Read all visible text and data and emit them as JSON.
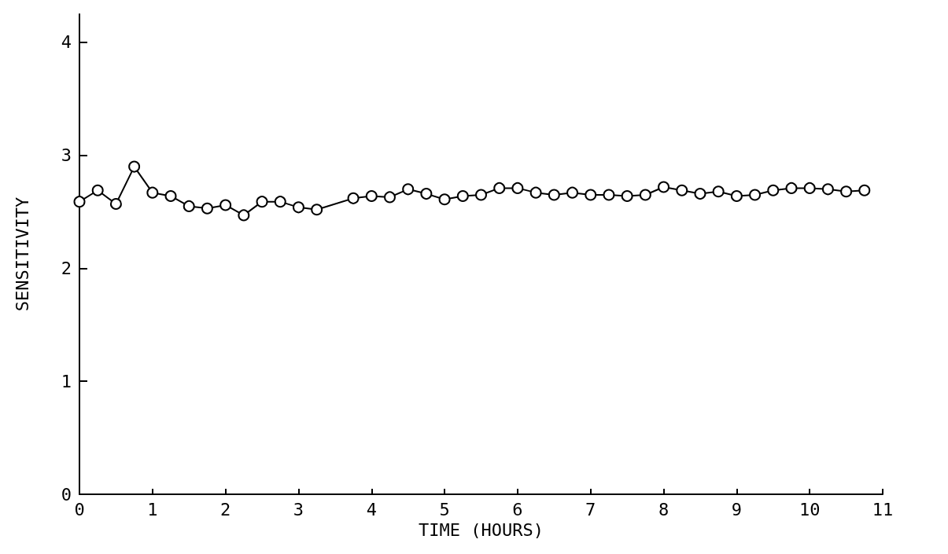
{
  "chart_data": {
    "type": "line",
    "xlabel": "TIME (HOURS)",
    "ylabel": "SENSITIVITY",
    "xlim": [
      0,
      11
    ],
    "xticks": [
      0,
      1,
      2,
      3,
      4,
      5,
      6,
      7,
      8,
      9,
      10,
      11
    ],
    "ylim": [
      0,
      4.25
    ],
    "yticks": [
      0,
      1,
      2,
      3,
      4
    ],
    "grid": false,
    "marker": "circle",
    "line_style": "solid",
    "series": [
      {
        "color": "#000000",
        "x": [
          0,
          0.25,
          0.5,
          0.75,
          1,
          1.25,
          1.5,
          1.75,
          2,
          2.25,
          2.5,
          2.75,
          3,
          3.25,
          3.75,
          4,
          4.25,
          4.5,
          4.75,
          5,
          5.25,
          5.5,
          5.75,
          6,
          6.25,
          6.5,
          6.75,
          7,
          7.25,
          7.5,
          7.75,
          8,
          8.25,
          8.5,
          8.75,
          9,
          9.25,
          9.5,
          9.75,
          10,
          10.25,
          10.5,
          10.75
        ],
        "values": [
          2.59,
          2.69,
          2.57,
          2.9,
          2.67,
          2.64,
          2.55,
          2.53,
          2.56,
          2.47,
          2.59,
          2.59,
          2.54,
          2.52,
          2.62,
          2.64,
          2.63,
          2.7,
          2.66,
          2.61,
          2.64,
          2.65,
          2.71,
          2.71,
          2.67,
          2.65,
          2.67,
          2.65,
          2.65,
          2.64,
          2.65,
          2.72,
          2.69,
          2.66,
          2.68,
          2.64,
          2.65,
          2.69,
          2.71,
          2.71,
          2.7,
          2.68,
          2.69
        ]
      }
    ]
  }
}
